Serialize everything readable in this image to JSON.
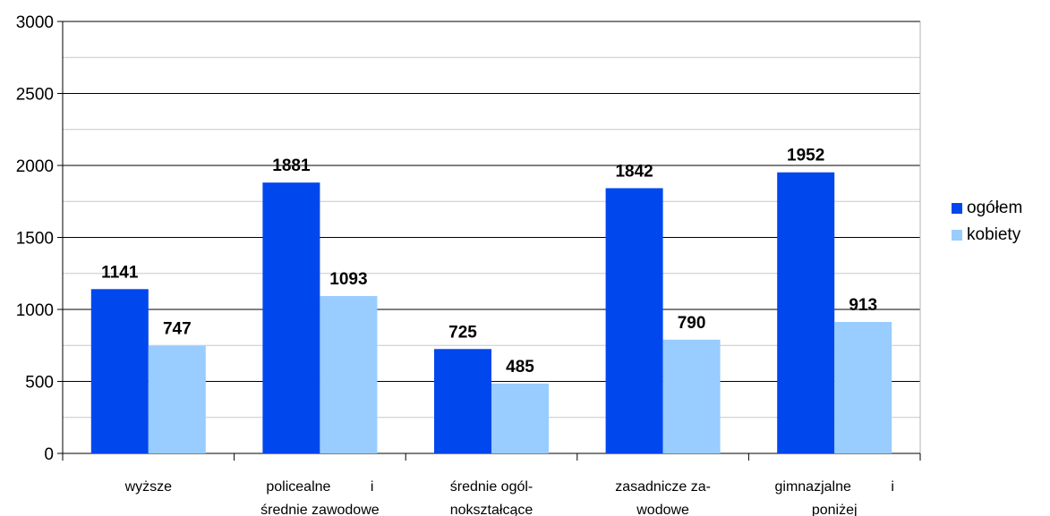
{
  "chart_data": {
    "type": "bar",
    "categories": [
      [
        "wyższe"
      ],
      [
        "policealne          i",
        "średnie zawodowe"
      ],
      [
        "średnie ogól-",
        "nokształcące"
      ],
      [
        "zasadnicze za-",
        "wodowe"
      ],
      [
        "gimnazjalne          i",
        "poniżej"
      ]
    ],
    "series": [
      {
        "name": "ogółem",
        "color": "#0047ee",
        "values": [
          1141,
          1881,
          725,
          1842,
          1952
        ]
      },
      {
        "name": "kobiety",
        "color": "#99ccff",
        "values": [
          747,
          1093,
          485,
          790,
          913
        ]
      }
    ],
    "ylim": [
      0,
      3000
    ],
    "yticks": [
      0,
      500,
      1000,
      1500,
      2000,
      2500,
      3000
    ],
    "minor_gridlines": true,
    "legend_position": "right",
    "xlabel": "",
    "ylabel": ""
  }
}
